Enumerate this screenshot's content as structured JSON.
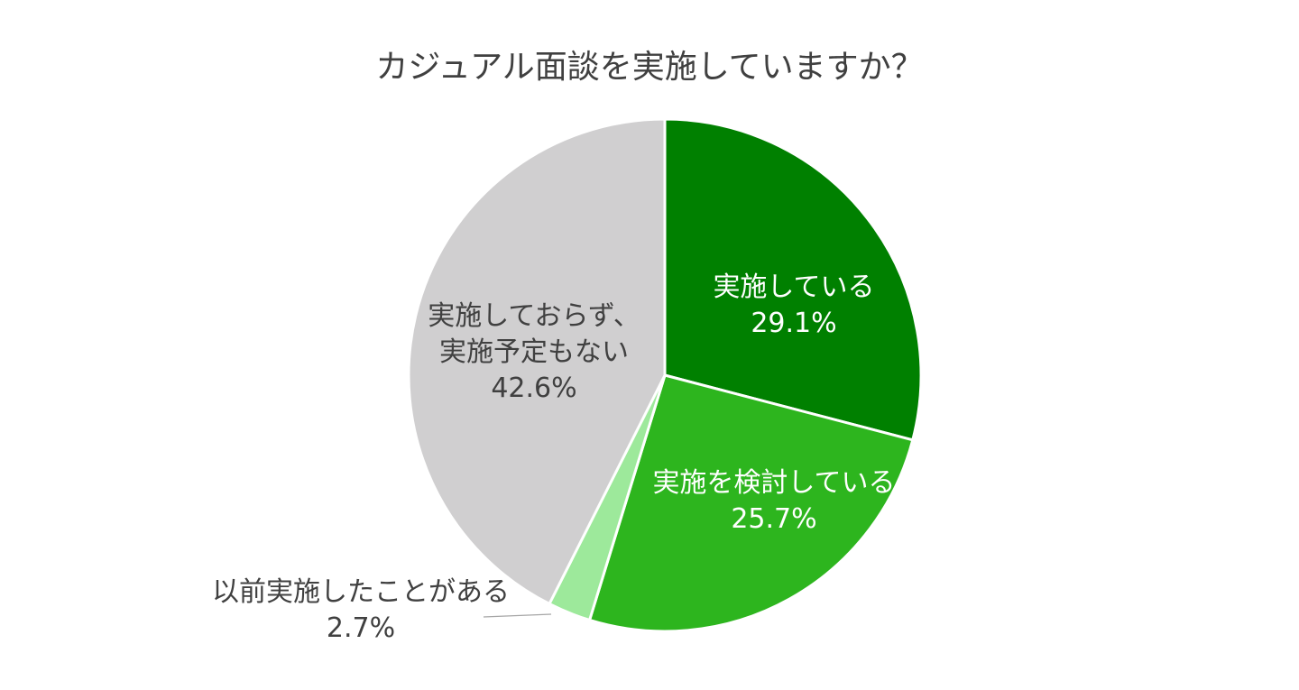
{
  "chart_data": {
    "type": "pie",
    "title": "カジュアル面談を実施していますか？",
    "slices": [
      {
        "label_lines": [
          "実施している"
        ],
        "value_label": "29.1%",
        "value": 29.1,
        "color": "#008000",
        "text_color": "#ffffff"
      },
      {
        "label_lines": [
          "実施を検討している"
        ],
        "value_label": "25.7%",
        "value": 25.7,
        "color": "#2db51e",
        "text_color": "#ffffff"
      },
      {
        "label_lines": [
          "以前実施したことがある"
        ],
        "value_label": "2.7%",
        "value": 2.7,
        "color": "#9de99b",
        "text_color": "#404040"
      },
      {
        "label_lines": [
          "実施しておらず、",
          "実施予定もない"
        ],
        "value_label": "42.6%",
        "value": 42.6,
        "color": "#d0cfd0",
        "text_color": "#404040"
      }
    ],
    "start_angle": "12 o'clock",
    "direction": "clockwise",
    "legend": "none"
  }
}
